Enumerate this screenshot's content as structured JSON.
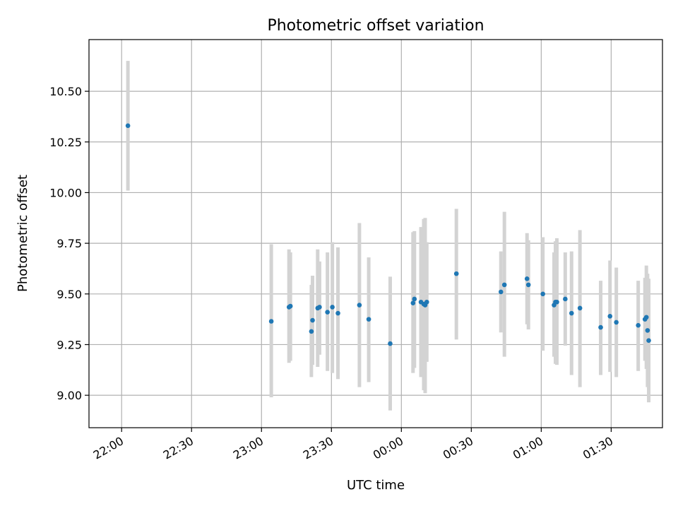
{
  "chart_data": {
    "type": "scatter",
    "title": "Photometric offset variation",
    "xlabel": "UTC time",
    "ylabel": "Photometric offset",
    "grid": true,
    "xlim_minutes": [
      -14,
      232
    ],
    "ylim": [
      8.84,
      10.755
    ],
    "x_ticks": [
      {
        "minute": 0,
        "label": "22:00"
      },
      {
        "minute": 30,
        "label": "22:30"
      },
      {
        "minute": 60,
        "label": "23:00"
      },
      {
        "minute": 90,
        "label": "23:30"
      },
      {
        "minute": 120,
        "label": "00:00"
      },
      {
        "minute": 150,
        "label": "00:30"
      },
      {
        "minute": 180,
        "label": "01:00"
      },
      {
        "minute": 210,
        "label": "01:30"
      }
    ],
    "y_ticks": [
      {
        "value": 9.0,
        "label": "9.00"
      },
      {
        "value": 9.25,
        "label": "9.25"
      },
      {
        "value": 9.5,
        "label": "9.50"
      },
      {
        "value": 9.75,
        "label": "9.75"
      },
      {
        "value": 10.0,
        "label": "10.00"
      },
      {
        "value": 10.25,
        "label": "10.25"
      },
      {
        "value": 10.5,
        "label": "10.50"
      }
    ],
    "colors": {
      "point": "#1f77b4",
      "errorbar": "#d3d3d3",
      "grid": "#b0b0b0"
    },
    "points": [
      {
        "x": 2.7,
        "y": 10.33,
        "low": 10.01,
        "high": 10.65
      },
      {
        "x": 64.2,
        "y": 9.365,
        "low": 8.99,
        "high": 9.745
      },
      {
        "x": 71.8,
        "y": 9.435,
        "low": 9.16,
        "high": 9.72
      },
      {
        "x": 72.4,
        "y": 9.44,
        "low": 9.17,
        "high": 9.705
      },
      {
        "x": 81.4,
        "y": 9.315,
        "low": 9.09,
        "high": 9.545
      },
      {
        "x": 81.9,
        "y": 9.37,
        "low": 9.15,
        "high": 9.59
      },
      {
        "x": 84.1,
        "y": 9.43,
        "low": 9.14,
        "high": 9.72
      },
      {
        "x": 84.9,
        "y": 9.435,
        "low": 9.2,
        "high": 9.66
      },
      {
        "x": 88.3,
        "y": 9.41,
        "low": 9.12,
        "high": 9.705
      },
      {
        "x": 90.4,
        "y": 9.435,
        "low": 9.11,
        "high": 9.755
      },
      {
        "x": 92.8,
        "y": 9.405,
        "low": 9.08,
        "high": 9.73
      },
      {
        "x": 102.0,
        "y": 9.445,
        "low": 9.04,
        "high": 9.85
      },
      {
        "x": 106.0,
        "y": 9.375,
        "low": 9.065,
        "high": 9.68
      },
      {
        "x": 115.2,
        "y": 9.255,
        "low": 8.925,
        "high": 9.585
      },
      {
        "x": 125.0,
        "y": 9.455,
        "low": 9.11,
        "high": 9.805
      },
      {
        "x": 125.6,
        "y": 9.475,
        "low": 9.135,
        "high": 9.81
      },
      {
        "x": 128.4,
        "y": 9.46,
        "low": 9.09,
        "high": 9.83
      },
      {
        "x": 129.6,
        "y": 9.45,
        "low": 9.025,
        "high": 9.87
      },
      {
        "x": 130.2,
        "y": 9.445,
        "low": 9.01,
        "high": 9.875
      },
      {
        "x": 130.9,
        "y": 9.46,
        "low": 9.165,
        "high": 9.755
      },
      {
        "x": 143.6,
        "y": 9.6,
        "low": 9.275,
        "high": 9.92
      },
      {
        "x": 162.7,
        "y": 9.51,
        "low": 9.31,
        "high": 9.71
      },
      {
        "x": 164.2,
        "y": 9.545,
        "low": 9.19,
        "high": 9.905
      },
      {
        "x": 173.9,
        "y": 9.575,
        "low": 9.35,
        "high": 9.8
      },
      {
        "x": 174.5,
        "y": 9.545,
        "low": 9.325,
        "high": 9.765
      },
      {
        "x": 180.7,
        "y": 9.5,
        "low": 9.22,
        "high": 9.78
      },
      {
        "x": 185.5,
        "y": 9.445,
        "low": 9.19,
        "high": 9.705
      },
      {
        "x": 186.1,
        "y": 9.46,
        "low": 9.155,
        "high": 9.76
      },
      {
        "x": 186.7,
        "y": 9.46,
        "low": 9.15,
        "high": 9.775
      },
      {
        "x": 190.3,
        "y": 9.475,
        "low": 9.245,
        "high": 9.705
      },
      {
        "x": 193.0,
        "y": 9.405,
        "low": 9.1,
        "high": 9.71
      },
      {
        "x": 196.6,
        "y": 9.43,
        "low": 9.04,
        "high": 9.815
      },
      {
        "x": 205.5,
        "y": 9.335,
        "low": 9.1,
        "high": 9.565
      },
      {
        "x": 209.5,
        "y": 9.39,
        "low": 9.115,
        "high": 9.665
      },
      {
        "x": 212.2,
        "y": 9.36,
        "low": 9.09,
        "high": 9.63
      },
      {
        "x": 221.6,
        "y": 9.345,
        "low": 9.12,
        "high": 9.565
      },
      {
        "x": 224.5,
        "y": 9.375,
        "low": 9.17,
        "high": 9.58
      },
      {
        "x": 225.1,
        "y": 9.385,
        "low": 9.13,
        "high": 9.64
      },
      {
        "x": 225.6,
        "y": 9.32,
        "low": 9.04,
        "high": 9.6
      },
      {
        "x": 226.1,
        "y": 9.27,
        "low": 8.965,
        "high": 9.575
      }
    ]
  }
}
